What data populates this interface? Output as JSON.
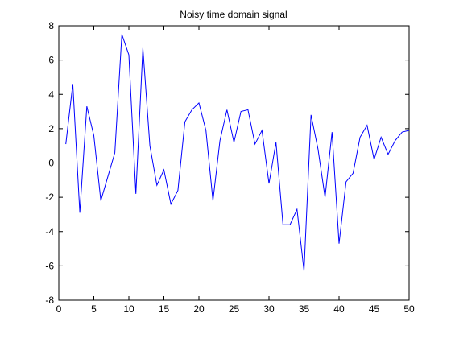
{
  "chart_data": {
    "type": "line",
    "title": "Noisy time domain signal",
    "xlabel": "",
    "ylabel": "",
    "xlim": [
      0,
      50
    ],
    "ylim": [
      -8,
      8
    ],
    "xticks": [
      0,
      5,
      10,
      15,
      20,
      25,
      30,
      35,
      40,
      45,
      50
    ],
    "yticks": [
      -8,
      -6,
      -4,
      -2,
      0,
      2,
      4,
      6,
      8
    ],
    "grid": false,
    "line_color": "#0000ff",
    "x": [
      1,
      2,
      3,
      4,
      5,
      6,
      7,
      8,
      9,
      10,
      11,
      12,
      13,
      14,
      15,
      16,
      17,
      18,
      19,
      20,
      21,
      22,
      23,
      24,
      25,
      26,
      27,
      28,
      29,
      30,
      31,
      32,
      33,
      34,
      35,
      36,
      37,
      38,
      39,
      40,
      41,
      42,
      43,
      44,
      45,
      46,
      47,
      48,
      49,
      50
    ],
    "series": [
      {
        "values": [
          1.1,
          4.6,
          -2.9,
          3.3,
          1.6,
          -2.2,
          -0.8,
          0.6,
          7.5,
          6.3,
          -1.8,
          6.7,
          1.0,
          -1.3,
          -0.4,
          -2.4,
          -1.6,
          2.4,
          3.1,
          3.5,
          1.9,
          -2.2,
          1.3,
          3.1,
          1.2,
          3.0,
          3.1,
          1.1,
          1.9,
          -1.2,
          1.2,
          -3.6,
          -3.6,
          -2.7,
          -6.3,
          2.8,
          0.8,
          -2.0,
          1.8,
          -4.7,
          -1.1,
          -0.6,
          1.5,
          2.2,
          0.2,
          1.5,
          0.5,
          1.3,
          1.8,
          1.9
        ]
      }
    ]
  }
}
